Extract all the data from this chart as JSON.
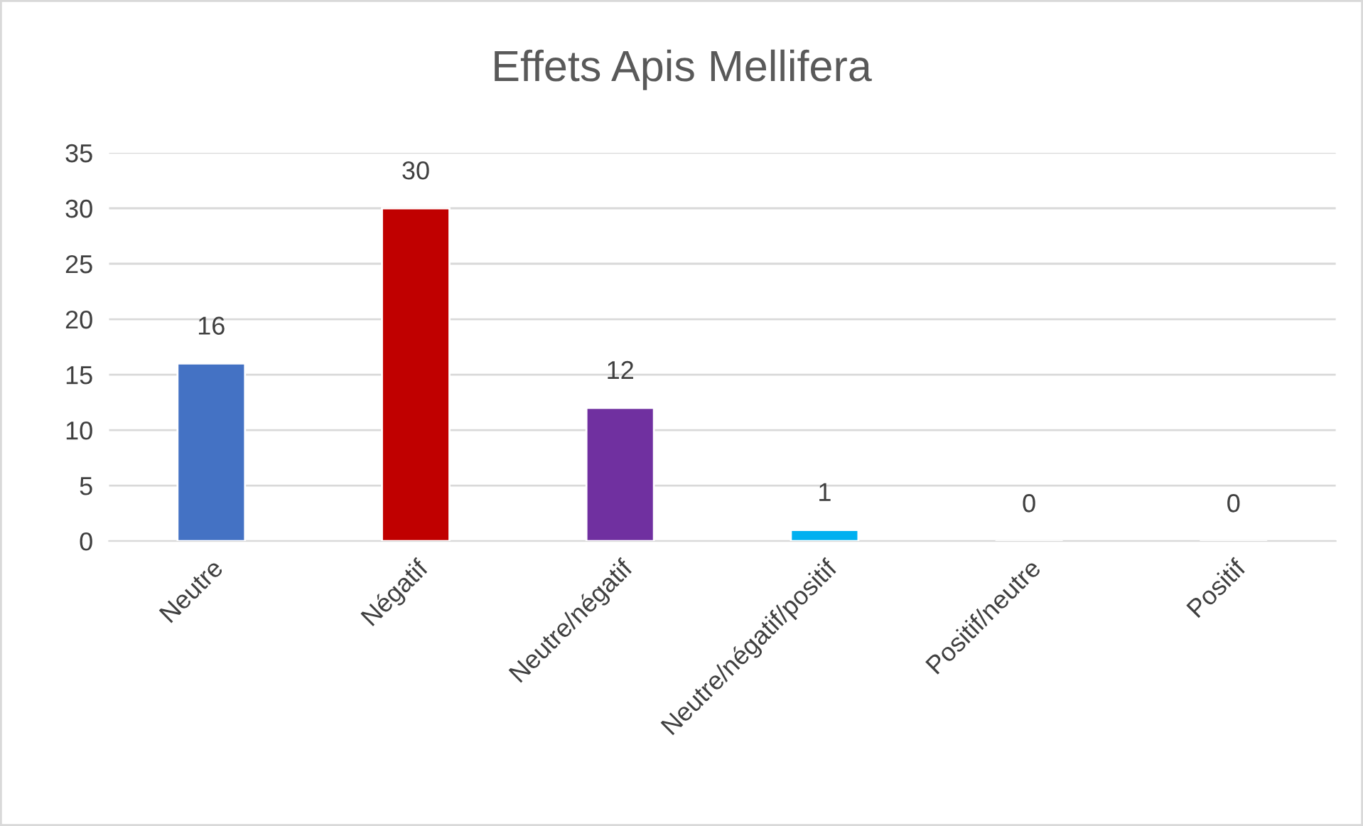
{
  "chart_data": {
    "type": "bar",
    "title": "Effets Apis Mellifera",
    "categories": [
      "Neutre",
      "Négatif",
      "Neutre/négatif",
      "Neutre/négatif/positif",
      "Positif/neutre",
      "Positif"
    ],
    "values": [
      16,
      30,
      12,
      1,
      0,
      0
    ],
    "colors": [
      "#4472c4",
      "#c00000",
      "#7030a0",
      "#00b0f0",
      null,
      null
    ],
    "ylim": [
      0,
      35
    ],
    "yticks": [
      0,
      5,
      10,
      15,
      20,
      25,
      30,
      35
    ],
    "grid": "y",
    "data_labels": true
  }
}
